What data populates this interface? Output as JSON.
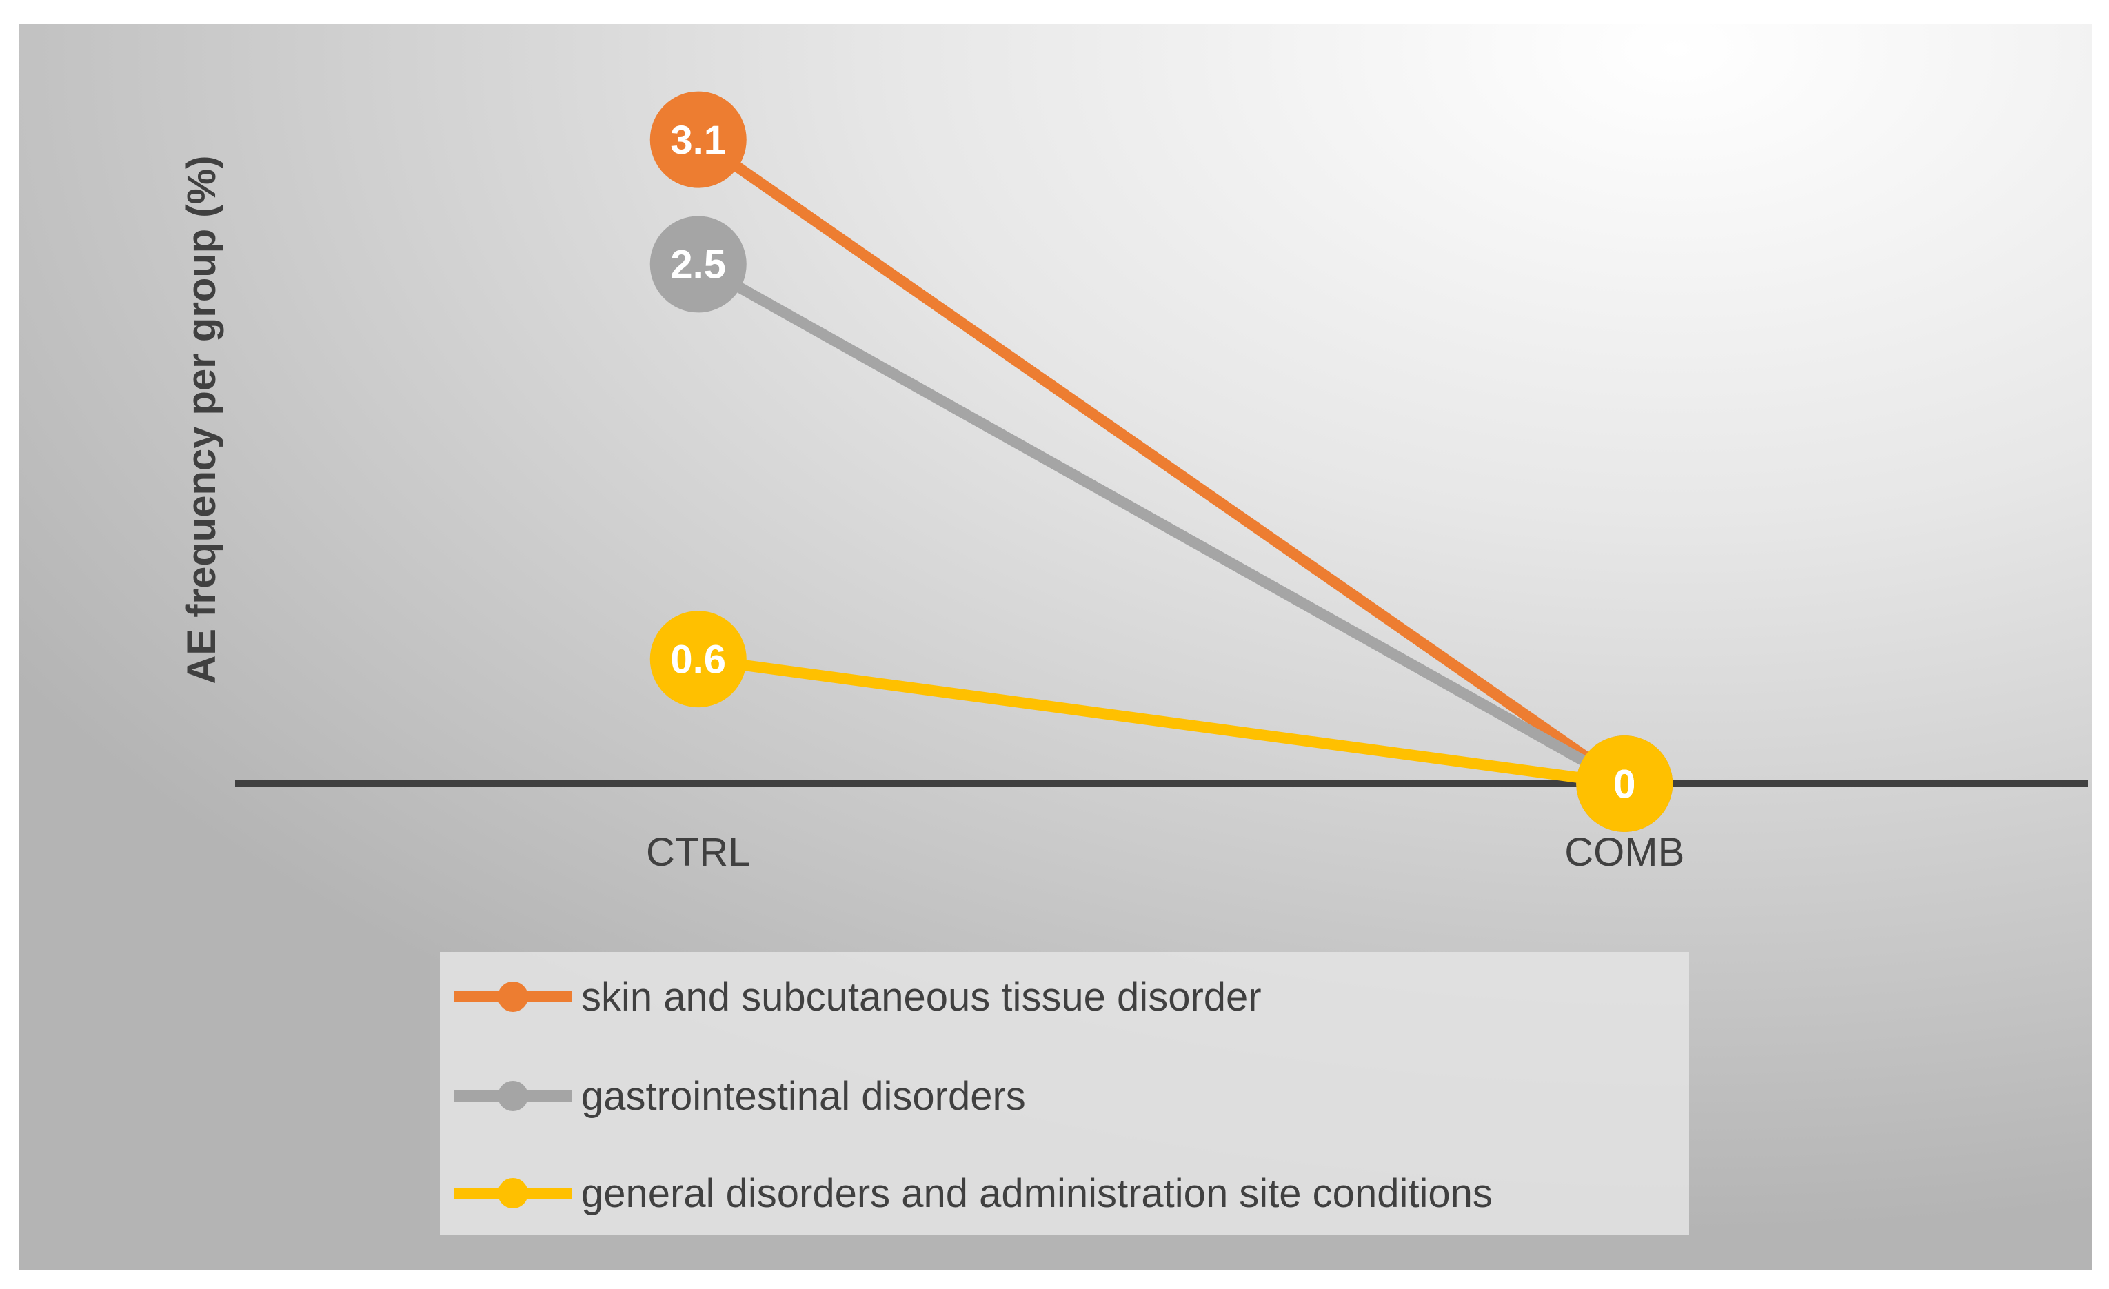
{
  "chart_data": {
    "type": "line",
    "ylabel": "AE frequency per group (%)",
    "ylim": [
      0,
      3.5
    ],
    "grid": false,
    "categories": [
      "CTRL",
      "COMB"
    ],
    "series": [
      {
        "name": "skin and subcutaneous tissue disorder",
        "color": "#ED7D31",
        "values": [
          3.1,
          0
        ]
      },
      {
        "name": "gastrointestinal disorders",
        "color": "#A5A5A5",
        "values": [
          2.5,
          0
        ]
      },
      {
        "name": "general disorders and administration site conditions",
        "color": "#FFC000",
        "values": [
          0.6,
          0
        ]
      }
    ]
  },
  "colors": {
    "axis": "#404040",
    "text": "#404040",
    "data_label_text": "#FFFFFF",
    "legend_background": "#E4E4E4"
  }
}
